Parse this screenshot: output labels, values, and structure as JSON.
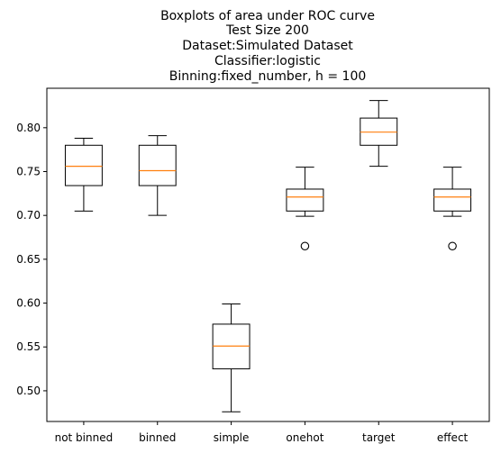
{
  "chart_data": {
    "type": "boxplot",
    "title_lines": [
      "Boxplots of area under ROC curve",
      "Test Size 200",
      "Dataset:Simulated Dataset",
      "Classifier:logistic",
      "Binning:fixed_number, h = 100"
    ],
    "xlabel": "",
    "ylabel": "",
    "categories": [
      "not binned",
      "binned",
      "simple",
      "onehot",
      "target",
      "effect"
    ],
    "boxes": [
      {
        "whisker_low": 0.705,
        "q1": 0.734,
        "median": 0.756,
        "q3": 0.78,
        "whisker_high": 0.788,
        "outliers": []
      },
      {
        "whisker_low": 0.7,
        "q1": 0.734,
        "median": 0.751,
        "q3": 0.78,
        "whisker_high": 0.791,
        "outliers": []
      },
      {
        "whisker_low": 0.476,
        "q1": 0.525,
        "median": 0.551,
        "q3": 0.576,
        "whisker_high": 0.599,
        "outliers": []
      },
      {
        "whisker_low": 0.699,
        "q1": 0.705,
        "median": 0.721,
        "q3": 0.73,
        "whisker_high": 0.755,
        "outliers": [
          0.665
        ]
      },
      {
        "whisker_low": 0.756,
        "q1": 0.78,
        "median": 0.795,
        "q3": 0.811,
        "whisker_high": 0.831,
        "outliers": []
      },
      {
        "whisker_low": 0.699,
        "q1": 0.705,
        "median": 0.721,
        "q3": 0.73,
        "whisker_high": 0.755,
        "outliers": [
          0.665
        ]
      }
    ],
    "yticks": [
      0.5,
      0.55,
      0.6,
      0.65,
      0.7,
      0.75,
      0.8
    ],
    "ytick_labels": [
      "0.50",
      "0.55",
      "0.60",
      "0.65",
      "0.70",
      "0.75",
      "0.80"
    ],
    "ylim": [
      0.465,
      0.845
    ],
    "grid": false,
    "colors": {
      "box": "#000000",
      "median": "#ff7f0e",
      "outlier": "#000000"
    }
  }
}
